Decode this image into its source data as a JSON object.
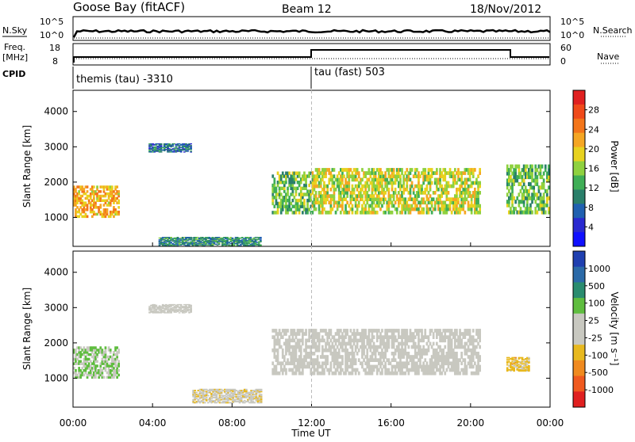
{
  "header": {
    "station": "Goose Bay (fitACF)",
    "beam": "Beam 12",
    "date": "18/Nov/2012"
  },
  "top_panels": {
    "nsky_label": "N.Sky",
    "nsky_ticks": [
      "10^5",
      "10^0"
    ],
    "nsearch_label": "N.Search",
    "nsearch_ticks": [
      "10^5",
      "10^0"
    ],
    "freq_label_line1": "Freq.",
    "freq_label_line2": "[MHz]",
    "freq_ticks": [
      "18",
      "8"
    ],
    "nave_label": "Nave",
    "nave_ticks": [
      "60",
      "0"
    ],
    "cpid_label": "CPID",
    "cpid_segments": [
      {
        "label": "themis (tau) -3310",
        "start_hour": 0
      },
      {
        "label": "tau (fast) 503",
        "start_hour": 12
      }
    ],
    "freq_step": {
      "before_hour": 12,
      "after_hour": 22,
      "level_before": "low",
      "level_after": "high"
    }
  },
  "power_panel": {
    "ylabel": "Slant Range [km]",
    "yticks": [
      "4000",
      "3000",
      "2000",
      "1000"
    ],
    "colorbar_label": "Power [dB]",
    "colorbar_ticks": [
      "28",
      "24",
      "20",
      "16",
      "12",
      "8",
      "4"
    ],
    "colors": [
      "#e02020",
      "#f04a1a",
      "#f3751a",
      "#f5a623",
      "#e8d21f",
      "#8fd13f",
      "#3fae56",
      "#2a7f6a",
      "#2060b0",
      "#2a2ad0",
      "#1010ff"
    ]
  },
  "velocity_panel": {
    "ylabel": "Slant Range [km]",
    "yticks": [
      "4000",
      "3000",
      "2000",
      "1000"
    ],
    "colorbar_label": "Velocity [m s⁻¹]",
    "colorbar_ticks": [
      "1000",
      "500",
      "100",
      "25",
      "-25",
      "-100",
      "-500",
      "-1000"
    ],
    "colors": [
      "#1f3fb0",
      "#2b6aa8",
      "#2a8c6f",
      "#5fbd3f",
      "#c8c8c0",
      "#c8c8c0",
      "#e8b91f",
      "#f08a1f",
      "#f05a1f",
      "#e02020"
    ]
  },
  "x_axis": {
    "ticks": [
      "00:00",
      "04:00",
      "08:00",
      "12:00",
      "16:00",
      "20:00",
      "00:00"
    ],
    "label": "Time UT"
  },
  "chart_data": {
    "type": "heatmap",
    "title": "Goose Bay (fitACF) Beam 12 18/Nov/2012",
    "xlabel": "Time UT",
    "ylabel": "Slant Range [km]",
    "x_range_hours": [
      0,
      24
    ],
    "y_range_km": [
      180,
      4600
    ],
    "series": [
      {
        "name": "Power [dB]",
        "range": [
          0,
          32
        ],
        "regions": [
          {
            "t0": 0.0,
            "t1": 2.3,
            "r0": 1000,
            "r1": 1900,
            "level": 22
          },
          {
            "t0": 3.8,
            "t1": 6.0,
            "r0": 2850,
            "r1": 3100,
            "level": 8
          },
          {
            "t0": 4.3,
            "t1": 9.5,
            "r0": 200,
            "r1": 450,
            "level": 10
          },
          {
            "t0": 10.0,
            "t1": 12.0,
            "r0": 1100,
            "r1": 2300,
            "level": 14
          },
          {
            "t0": 12.0,
            "t1": 20.5,
            "r0": 1100,
            "r1": 2400,
            "level": 18
          },
          {
            "t0": 21.8,
            "t1": 24.0,
            "r0": 1100,
            "r1": 2500,
            "level": 14
          }
        ]
      },
      {
        "name": "Velocity [m s⁻¹]",
        "range": [
          -1000,
          1000
        ],
        "regions": [
          {
            "t0": 0.0,
            "t1": 2.3,
            "r0": 1000,
            "r1": 1900,
            "level": 200
          },
          {
            "t0": 3.8,
            "t1": 6.0,
            "r0": 2850,
            "r1": 3100,
            "level": 0
          },
          {
            "t0": 6.0,
            "t1": 9.5,
            "r0": 300,
            "r1": 700,
            "level": -150
          },
          {
            "t0": 10.0,
            "t1": 20.5,
            "r0": 1100,
            "r1": 2400,
            "level": 0
          },
          {
            "t0": 21.8,
            "t1": 23.0,
            "r0": 1200,
            "r1": 1600,
            "level": -300
          }
        ]
      }
    ]
  }
}
